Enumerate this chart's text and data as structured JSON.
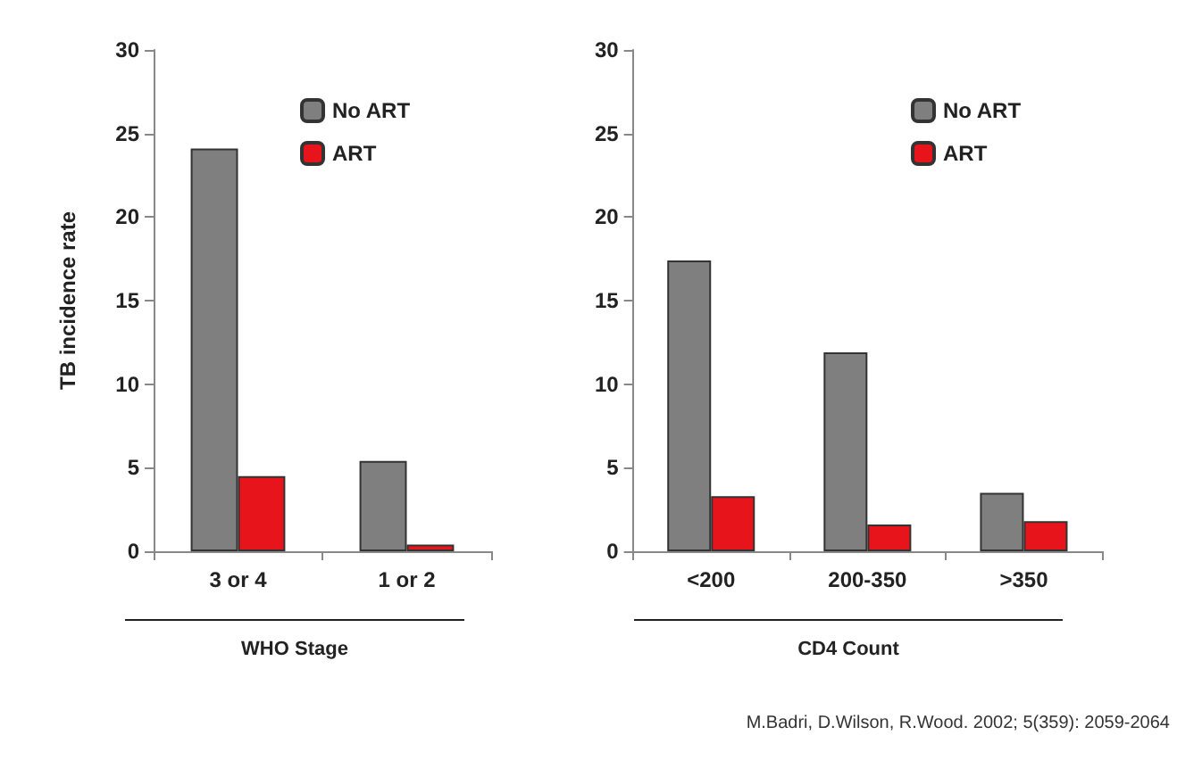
{
  "chart_data": [
    {
      "type": "bar",
      "ylabel": "TB incidence rate",
      "xlabel": "WHO Stage",
      "categories": [
        "3 or 4",
        "1 or 2"
      ],
      "series": [
        {
          "name": "No ART",
          "color": "#7f7f7f",
          "values": [
            24.1,
            5.4
          ]
        },
        {
          "name": "ART",
          "color": "#e8141b",
          "values": [
            4.5,
            0.4
          ]
        }
      ],
      "ylim": [
        0,
        30
      ],
      "yticks": [
        0,
        5,
        10,
        15,
        20,
        25,
        30
      ],
      "legend": "top right",
      "grid": false
    },
    {
      "type": "bar",
      "xlabel": "CD4 Count",
      "categories": [
        "<200",
        "200-350",
        ">350"
      ],
      "series": [
        {
          "name": "No ART",
          "color": "#7f7f7f",
          "values": [
            17.4,
            11.9,
            3.5
          ]
        },
        {
          "name": "ART",
          "color": "#e8141b",
          "values": [
            3.3,
            1.6,
            1.8
          ]
        }
      ],
      "ylim": [
        0,
        30
      ],
      "yticks": [
        0,
        5,
        10,
        15,
        20,
        25,
        30
      ],
      "legend": "top right",
      "grid": false,
      "annotations": [
        "M.Badri,  D.Wilson, R.Wood. 2002; 5(359): 2059-2064"
      ]
    }
  ]
}
